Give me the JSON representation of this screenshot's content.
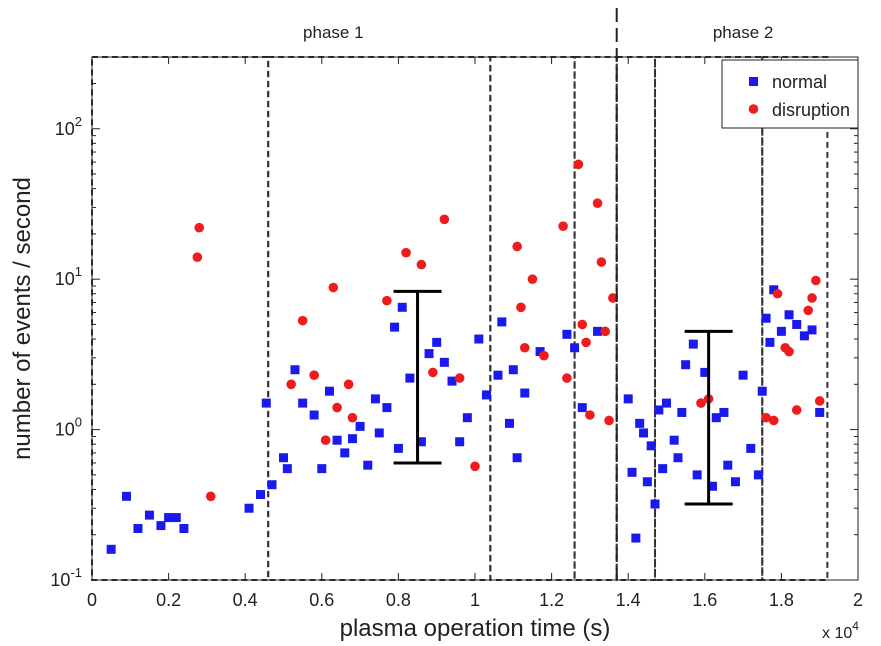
{
  "chart_data": {
    "type": "scatter",
    "xlabel": "plasma operation time (s)",
    "ylabel": "number of events / second",
    "x_multiplier_label": "x 10",
    "x_multiplier_exponent": "4",
    "x_scale_factor": 10000,
    "y_scale": "log",
    "xlim": [
      0,
      20000
    ],
    "ylim": [
      0.1,
      300
    ],
    "x_ticks": [
      0,
      0.2,
      0.4,
      0.6,
      0.8,
      1,
      1.2,
      1.4,
      1.6,
      1.8,
      2
    ],
    "x_tick_labels": [
      "0",
      "0.2",
      "0.4",
      "0.6",
      "0.8",
      "1",
      "1.2",
      "1.4",
      "1.6",
      "1.8",
      "2"
    ],
    "y_ticks": [
      {
        "value": 0.1,
        "base": "10",
        "exp": "-1"
      },
      {
        "value": 1,
        "base": "10",
        "exp": "0"
      },
      {
        "value": 10,
        "base": "10",
        "exp": "1"
      },
      {
        "value": 100,
        "base": "10",
        "exp": "2"
      }
    ],
    "grid": false,
    "legend": {
      "position": "top-right",
      "entries": [
        "normal",
        "disruption"
      ]
    },
    "phases": [
      {
        "label": "phase 1",
        "x_center": 6300
      },
      {
        "label": "phase 2",
        "x_center": 17000
      }
    ],
    "phase_divider_x": 13700,
    "dashed_boxes": [
      {
        "x0": 0,
        "x1": 4600,
        "y0": 0.1,
        "y1": 300
      },
      {
        "x0": 4600,
        "x1": 10400,
        "y0": 0.1,
        "y1": 300
      },
      {
        "x0": 10400,
        "x1": 12600,
        "y0": 0.1,
        "y1": 300
      },
      {
        "x0": 12600,
        "x1": 13700,
        "y0": 0.1,
        "y1": 300
      },
      {
        "x0": 13700,
        "x1": 14700,
        "y0": 0.1,
        "y1": 300
      },
      {
        "x0": 14700,
        "x1": 17500,
        "y0": 0.1,
        "y1": 300
      },
      {
        "x0": 17500,
        "x1": 19200,
        "y0": 0.1,
        "y1": 300
      }
    ],
    "error_bars": [
      {
        "x": 8500,
        "y_low": 0.6,
        "y_high": 8.3
      },
      {
        "x": 16100,
        "y_low": 0.32,
        "y_high": 4.5
      }
    ],
    "series": [
      {
        "name": "normal",
        "marker": "square",
        "color": "#1a1aee",
        "points": [
          [
            500,
            0.16
          ],
          [
            900,
            0.36
          ],
          [
            1200,
            0.22
          ],
          [
            1500,
            0.27
          ],
          [
            1800,
            0.23
          ],
          [
            2000,
            0.26
          ],
          [
            2200,
            0.26
          ],
          [
            2400,
            0.22
          ],
          [
            4100,
            0.3
          ],
          [
            4400,
            0.37
          ],
          [
            4550,
            1.5
          ],
          [
            4700,
            0.43
          ],
          [
            5000,
            0.65
          ],
          [
            5100,
            0.55
          ],
          [
            5300,
            2.5
          ],
          [
            5500,
            1.5
          ],
          [
            5800,
            1.25
          ],
          [
            6000,
            0.55
          ],
          [
            6200,
            1.8
          ],
          [
            6400,
            0.85
          ],
          [
            6600,
            0.7
          ],
          [
            6800,
            0.87
          ],
          [
            7000,
            1.05
          ],
          [
            7200,
            0.58
          ],
          [
            7400,
            1.6
          ],
          [
            7500,
            0.95
          ],
          [
            7700,
            1.4
          ],
          [
            7900,
            4.8
          ],
          [
            8000,
            0.75
          ],
          [
            8100,
            6.5
          ],
          [
            8300,
            2.2
          ],
          [
            8600,
            0.83
          ],
          [
            8800,
            3.2
          ],
          [
            9000,
            3.8
          ],
          [
            9200,
            2.8
          ],
          [
            9400,
            2.1
          ],
          [
            9600,
            0.83
          ],
          [
            9800,
            1.2
          ],
          [
            10100,
            4.0
          ],
          [
            10300,
            1.7
          ],
          [
            10600,
            2.3
          ],
          [
            10700,
            5.2
          ],
          [
            10900,
            1.1
          ],
          [
            11000,
            2.5
          ],
          [
            11100,
            0.65
          ],
          [
            11300,
            1.75
          ],
          [
            11700,
            3.3
          ],
          [
            12400,
            4.3
          ],
          [
            12600,
            3.5
          ],
          [
            12800,
            1.4
          ],
          [
            13200,
            4.5
          ],
          [
            14000,
            1.6
          ],
          [
            14100,
            0.52
          ],
          [
            14200,
            0.19
          ],
          [
            14300,
            1.1
          ],
          [
            14400,
            0.95
          ],
          [
            14500,
            0.45
          ],
          [
            14600,
            0.78
          ],
          [
            14700,
            0.32
          ],
          [
            14800,
            1.35
          ],
          [
            14900,
            0.55
          ],
          [
            15000,
            1.5
          ],
          [
            15200,
            0.85
          ],
          [
            15300,
            0.65
          ],
          [
            15400,
            1.3
          ],
          [
            15500,
            2.7
          ],
          [
            15700,
            3.7
          ],
          [
            15800,
            0.5
          ],
          [
            16000,
            2.4
          ],
          [
            16200,
            0.42
          ],
          [
            16300,
            1.2
          ],
          [
            16500,
            1.3
          ],
          [
            16600,
            0.58
          ],
          [
            16800,
            0.45
          ],
          [
            17000,
            2.3
          ],
          [
            17200,
            0.75
          ],
          [
            17400,
            0.5
          ],
          [
            17500,
            1.8
          ],
          [
            17600,
            5.5
          ],
          [
            17700,
            3.8
          ],
          [
            17800,
            8.5
          ],
          [
            18000,
            4.5
          ],
          [
            18200,
            5.8
          ],
          [
            18400,
            5.0
          ],
          [
            18600,
            4.2
          ],
          [
            18800,
            4.6
          ],
          [
            19000,
            1.3
          ]
        ]
      },
      {
        "name": "disruption",
        "marker": "circle",
        "color": "#ee1c1c",
        "points": [
          [
            2800,
            22
          ],
          [
            2750,
            14
          ],
          [
            3100,
            0.36
          ],
          [
            5200,
            2.0
          ],
          [
            5500,
            5.3
          ],
          [
            5800,
            2.3
          ],
          [
            6100,
            0.85
          ],
          [
            6300,
            8.8
          ],
          [
            6400,
            1.4
          ],
          [
            6700,
            2.0
          ],
          [
            6800,
            1.2
          ],
          [
            7700,
            7.2
          ],
          [
            8200,
            15
          ],
          [
            8600,
            12.5
          ],
          [
            8900,
            2.4
          ],
          [
            9200,
            25
          ],
          [
            9600,
            2.2
          ],
          [
            10000,
            0.57
          ],
          [
            11100,
            16.5
          ],
          [
            11200,
            6.5
          ],
          [
            11300,
            3.5
          ],
          [
            11500,
            10
          ],
          [
            11800,
            3.1
          ],
          [
            12300,
            22.5
          ],
          [
            12400,
            2.2
          ],
          [
            12700,
            58
          ],
          [
            12800,
            5.0
          ],
          [
            12900,
            3.8
          ],
          [
            13000,
            1.25
          ],
          [
            13200,
            32
          ],
          [
            13300,
            13
          ],
          [
            13400,
            4.5
          ],
          [
            13500,
            1.15
          ],
          [
            13600,
            7.5
          ],
          [
            15900,
            1.5
          ],
          [
            16100,
            1.6
          ],
          [
            17600,
            1.2
          ],
          [
            17800,
            1.15
          ],
          [
            17900,
            8.0
          ],
          [
            18100,
            3.5
          ],
          [
            18200,
            3.3
          ],
          [
            18400,
            1.35
          ],
          [
            18700,
            6.2
          ],
          [
            18800,
            7.5
          ],
          [
            18900,
            9.8
          ],
          [
            19000,
            1.55
          ]
        ]
      }
    ]
  }
}
